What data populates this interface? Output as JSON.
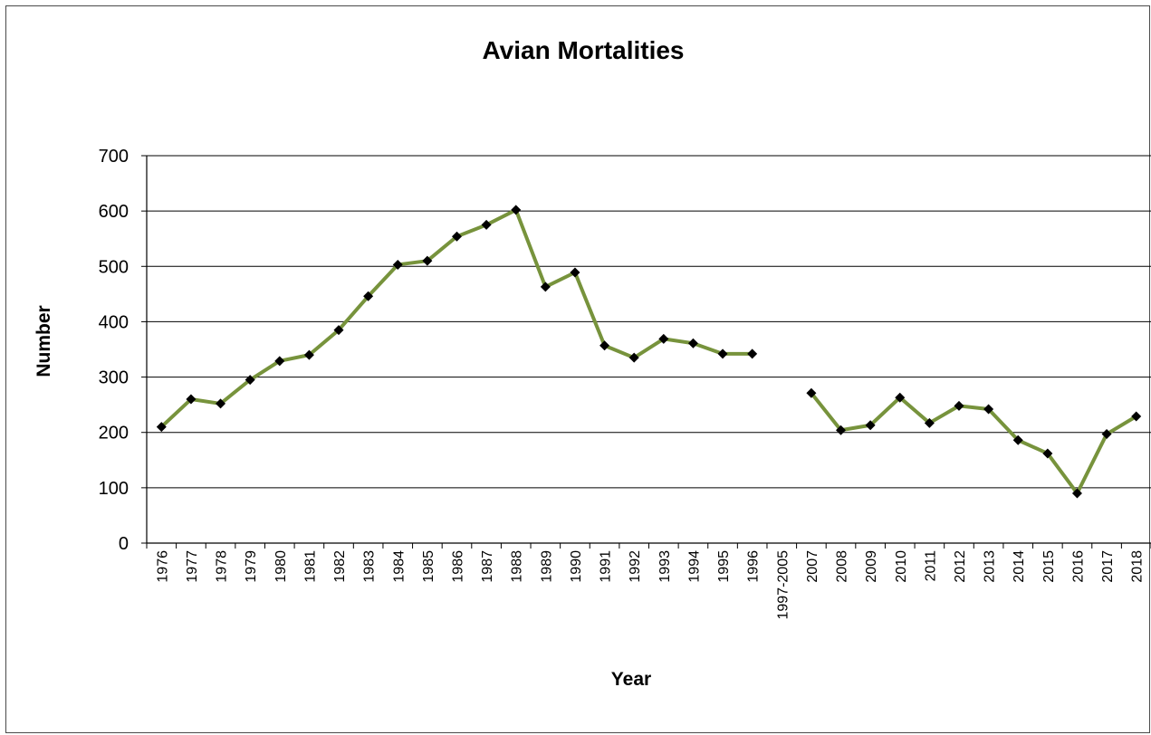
{
  "chart_data": {
    "type": "line",
    "title": "Avian Mortalities",
    "xlabel": "Year",
    "ylabel": "Number",
    "ylim": [
      0,
      700
    ],
    "yticks": [
      0,
      100,
      200,
      300,
      400,
      500,
      600,
      700
    ],
    "grid": true,
    "legend": "none",
    "series_color": "#77933C",
    "marker_color": "#000000",
    "categories": [
      "1976",
      "1977",
      "1978",
      "1979",
      "1980",
      "1981",
      "1982",
      "1983",
      "1984",
      "1985",
      "1986",
      "1987",
      "1988",
      "1989",
      "1990",
      "1991",
      "1992",
      "1993",
      "1994",
      "1995",
      "1996",
      "1997-2005",
      "2007",
      "2008",
      "2009",
      "2010",
      "2011",
      "2012",
      "2013",
      "2014",
      "2015",
      "2016",
      "2017",
      "2018"
    ],
    "values": [
      210,
      260,
      252,
      295,
      329,
      340,
      385,
      446,
      503,
      510,
      554,
      575,
      602,
      463,
      489,
      357,
      335,
      369,
      361,
      342,
      342,
      null,
      271,
      204,
      213,
      263,
      217,
      248,
      242,
      186,
      162,
      90,
      197,
      229
    ]
  }
}
